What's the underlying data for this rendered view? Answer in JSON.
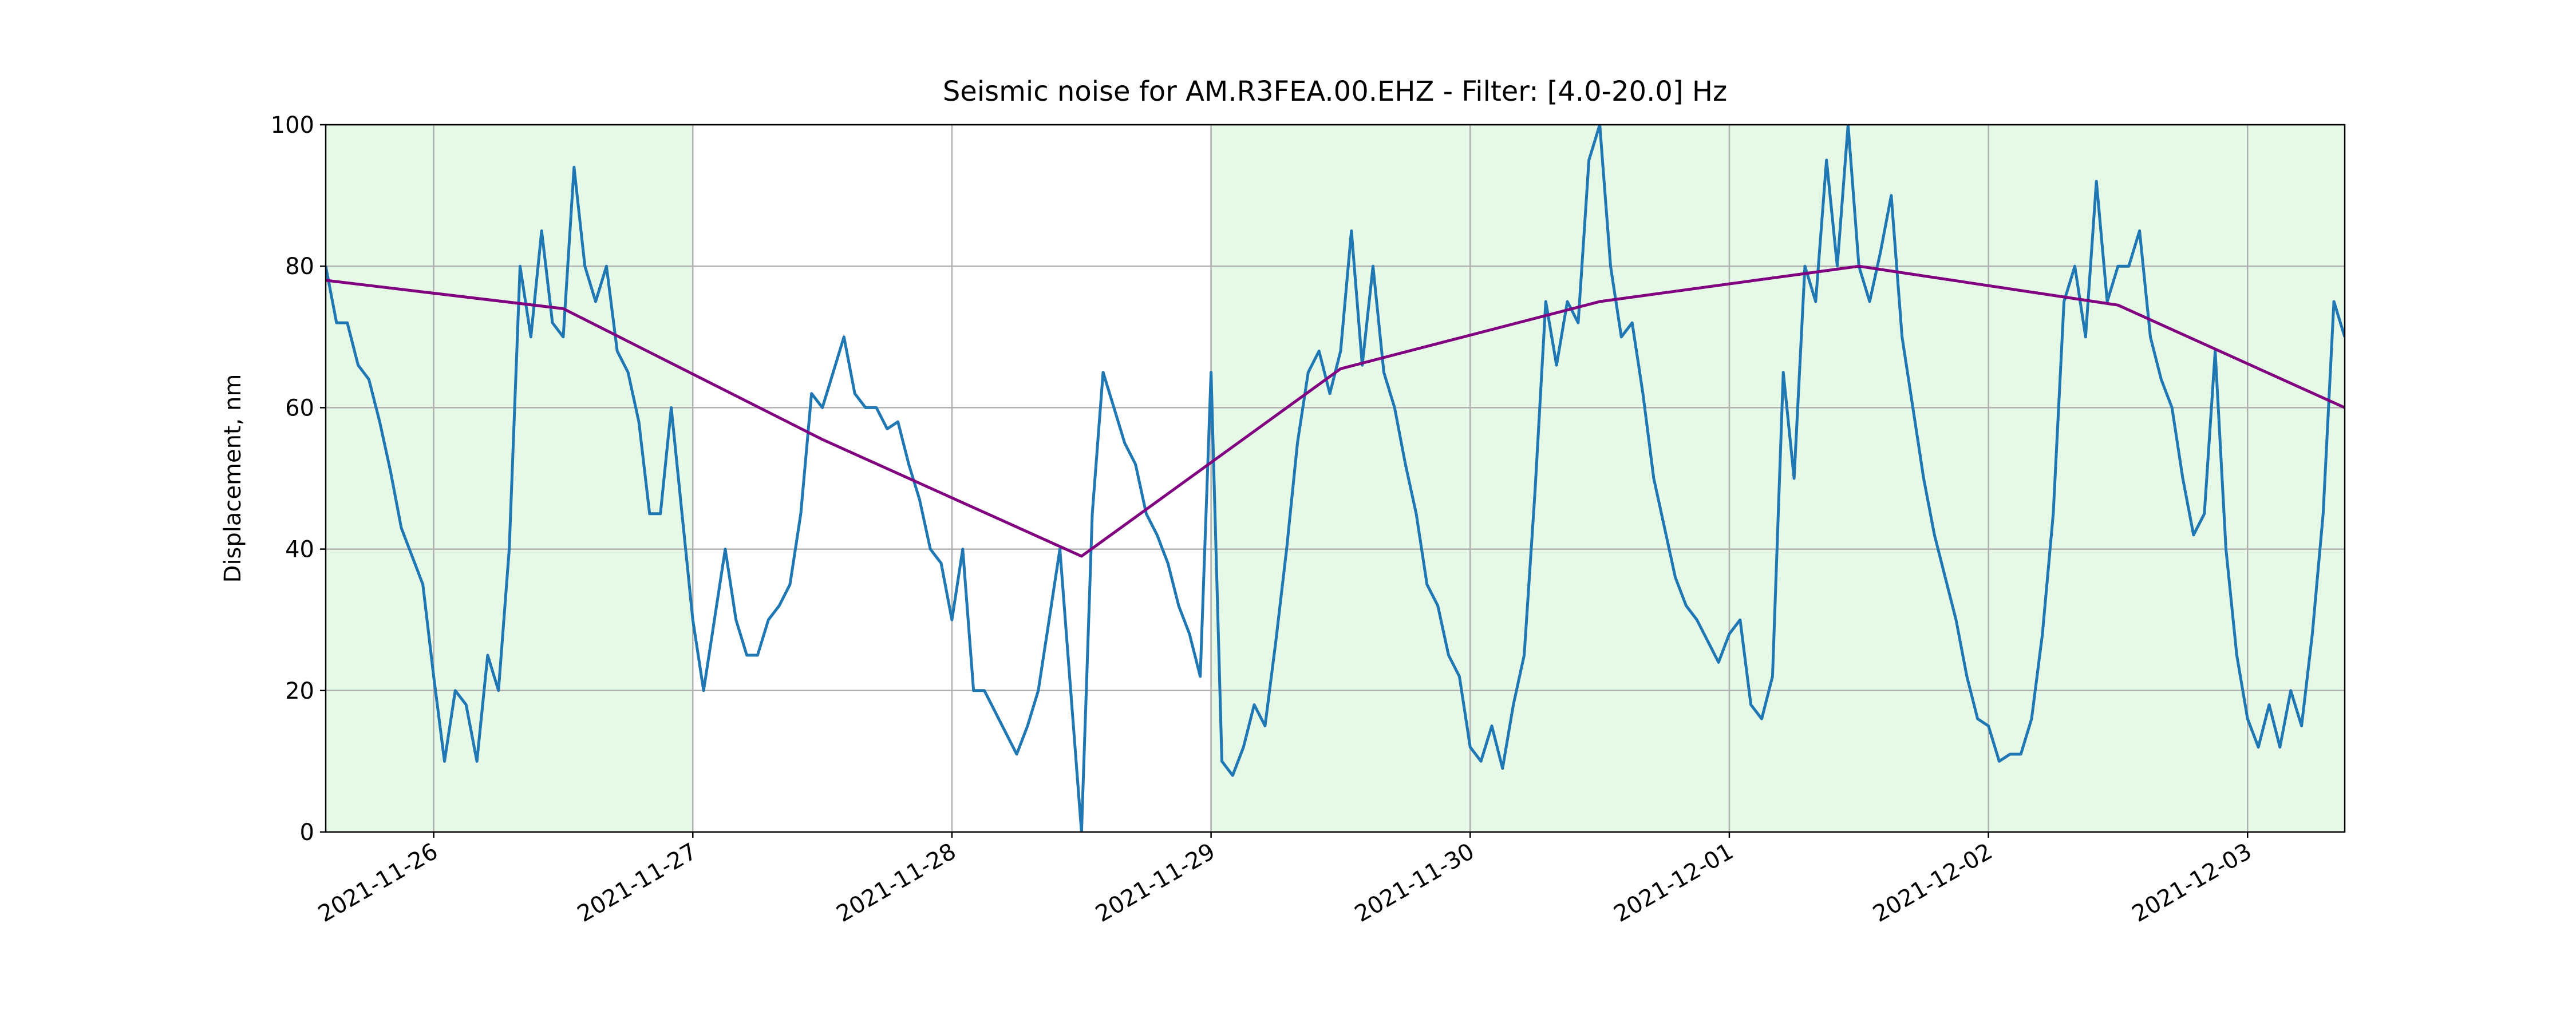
{
  "chart_data": {
    "type": "line",
    "title": "Seismic noise for AM.R3FEA.00.EHZ - Filter: [4.0-20.0] Hz",
    "ylabel": "Displacement, nm",
    "xlim": [
      "2021-11-25T14:00",
      "2021-12-03T09:00"
    ],
    "ylim": [
      0,
      100
    ],
    "yticks": [
      0,
      20,
      40,
      60,
      80,
      100
    ],
    "xticks": [
      {
        "value": "2021-11-26T00:00",
        "label": "2021-11-26"
      },
      {
        "value": "2021-11-27T00:00",
        "label": "2021-11-27"
      },
      {
        "value": "2021-11-28T00:00",
        "label": "2021-11-28"
      },
      {
        "value": "2021-11-29T00:00",
        "label": "2021-11-29"
      },
      {
        "value": "2021-11-30T00:00",
        "label": "2021-11-30"
      },
      {
        "value": "2021-12-01T00:00",
        "label": "2021-12-01"
      },
      {
        "value": "2021-12-02T00:00",
        "label": "2021-12-02"
      },
      {
        "value": "2021-12-03T00:00",
        "label": "2021-12-03"
      }
    ],
    "grid": true,
    "shade_color": "#e6f9e6",
    "shaded_spans": [
      {
        "start": "2021-11-25T14:00",
        "end": "2021-11-27T00:00"
      },
      {
        "start": "2021-11-29T00:00",
        "end": "2021-12-03T09:00"
      }
    ],
    "series": [
      {
        "color": "#1f77b4",
        "x": [
          "2021-11-25T14:00",
          "2021-11-25T15:00",
          "2021-11-25T16:00",
          "2021-11-25T17:00",
          "2021-11-25T18:00",
          "2021-11-25T19:00",
          "2021-11-25T20:00",
          "2021-11-25T21:00",
          "2021-11-25T22:00",
          "2021-11-25T23:00",
          "2021-11-26T00:00",
          "2021-11-26T01:00",
          "2021-11-26T02:00",
          "2021-11-26T03:00",
          "2021-11-26T04:00",
          "2021-11-26T05:00",
          "2021-11-26T06:00",
          "2021-11-26T07:00",
          "2021-11-26T08:00",
          "2021-11-26T09:00",
          "2021-11-26T10:00",
          "2021-11-26T11:00",
          "2021-11-26T12:00",
          "2021-11-26T13:00",
          "2021-11-26T14:00",
          "2021-11-26T15:00",
          "2021-11-26T16:00",
          "2021-11-26T17:00",
          "2021-11-26T18:00",
          "2021-11-26T19:00",
          "2021-11-26T20:00",
          "2021-11-26T21:00",
          "2021-11-26T22:00",
          "2021-11-26T23:00",
          "2021-11-27T00:00",
          "2021-11-27T01:00",
          "2021-11-27T02:00",
          "2021-11-27T03:00",
          "2021-11-27T04:00",
          "2021-11-27T05:00",
          "2021-11-27T06:00",
          "2021-11-27T07:00",
          "2021-11-27T08:00",
          "2021-11-27T09:00",
          "2021-11-27T10:00",
          "2021-11-27T11:00",
          "2021-11-27T12:00",
          "2021-11-27T13:00",
          "2021-11-27T14:00",
          "2021-11-27T15:00",
          "2021-11-27T16:00",
          "2021-11-27T17:00",
          "2021-11-27T18:00",
          "2021-11-27T19:00",
          "2021-11-27T20:00",
          "2021-11-27T21:00",
          "2021-11-27T22:00",
          "2021-11-27T23:00",
          "2021-11-28T00:00",
          "2021-11-28T01:00",
          "2021-11-28T02:00",
          "2021-11-28T03:00",
          "2021-11-28T04:00",
          "2021-11-28T05:00",
          "2021-11-28T06:00",
          "2021-11-28T07:00",
          "2021-11-28T08:00",
          "2021-11-28T09:00",
          "2021-11-28T10:00",
          "2021-11-28T11:00",
          "2021-11-28T12:00",
          "2021-11-28T13:00",
          "2021-11-28T14:00",
          "2021-11-28T15:00",
          "2021-11-28T16:00",
          "2021-11-28T17:00",
          "2021-11-28T18:00",
          "2021-11-28T19:00",
          "2021-11-28T20:00",
          "2021-11-28T21:00",
          "2021-11-28T22:00",
          "2021-11-28T23:00",
          "2021-11-29T00:00",
          "2021-11-29T01:00",
          "2021-11-29T02:00",
          "2021-11-29T03:00",
          "2021-11-29T04:00",
          "2021-11-29T05:00",
          "2021-11-29T06:00",
          "2021-11-29T07:00",
          "2021-11-29T08:00",
          "2021-11-29T09:00",
          "2021-11-29T10:00",
          "2021-11-29T11:00",
          "2021-11-29T12:00",
          "2021-11-29T13:00",
          "2021-11-29T14:00",
          "2021-11-29T15:00",
          "2021-11-29T16:00",
          "2021-11-29T17:00",
          "2021-11-29T18:00",
          "2021-11-29T19:00",
          "2021-11-29T20:00",
          "2021-11-29T21:00",
          "2021-11-29T22:00",
          "2021-11-29T23:00",
          "2021-11-30T00:00",
          "2021-11-30T01:00",
          "2021-11-30T02:00",
          "2021-11-30T03:00",
          "2021-11-30T04:00",
          "2021-11-30T05:00",
          "2021-11-30T06:00",
          "2021-11-30T07:00",
          "2021-11-30T08:00",
          "2021-11-30T09:00",
          "2021-11-30T10:00",
          "2021-11-30T11:00",
          "2021-11-30T12:00",
          "2021-11-30T13:00",
          "2021-11-30T14:00",
          "2021-11-30T15:00",
          "2021-11-30T16:00",
          "2021-11-30T17:00",
          "2021-11-30T18:00",
          "2021-11-30T19:00",
          "2021-11-30T20:00",
          "2021-11-30T21:00",
          "2021-11-30T22:00",
          "2021-11-30T23:00",
          "2021-12-01T00:00",
          "2021-12-01T01:00",
          "2021-12-01T02:00",
          "2021-12-01T03:00",
          "2021-12-01T04:00",
          "2021-12-01T05:00",
          "2021-12-01T06:00",
          "2021-12-01T07:00",
          "2021-12-01T08:00",
          "2021-12-01T09:00",
          "2021-12-01T10:00",
          "2021-12-01T11:00",
          "2021-12-01T12:00",
          "2021-12-01T13:00",
          "2021-12-01T14:00",
          "2021-12-01T15:00",
          "2021-12-01T16:00",
          "2021-12-01T17:00",
          "2021-12-01T18:00",
          "2021-12-01T19:00",
          "2021-12-01T20:00",
          "2021-12-01T21:00",
          "2021-12-01T22:00",
          "2021-12-01T23:00",
          "2021-12-02T00:00",
          "2021-12-02T01:00",
          "2021-12-02T02:00",
          "2021-12-02T03:00",
          "2021-12-02T04:00",
          "2021-12-02T05:00",
          "2021-12-02T06:00",
          "2021-12-02T07:00",
          "2021-12-02T08:00",
          "2021-12-02T09:00",
          "2021-12-02T10:00",
          "2021-12-02T11:00",
          "2021-12-02T12:00",
          "2021-12-02T13:00",
          "2021-12-02T14:00",
          "2021-12-02T15:00",
          "2021-12-02T16:00",
          "2021-12-02T17:00",
          "2021-12-02T18:00",
          "2021-12-02T19:00",
          "2021-12-02T20:00",
          "2021-12-02T21:00",
          "2021-12-02T22:00",
          "2021-12-02T23:00",
          "2021-12-03T00:00",
          "2021-12-03T01:00",
          "2021-12-03T02:00",
          "2021-12-03T03:00",
          "2021-12-03T04:00",
          "2021-12-03T05:00",
          "2021-12-03T06:00",
          "2021-12-03T07:00",
          "2021-12-03T08:00",
          "2021-12-03T09:00"
        ],
        "values": [
          80,
          72,
          72,
          66,
          64,
          58,
          51,
          43,
          39,
          35,
          22,
          10,
          20,
          18,
          10,
          25,
          20,
          40,
          80,
          70,
          85,
          72,
          70,
          94,
          80,
          75,
          80,
          68,
          65,
          58,
          45,
          45,
          60,
          45,
          30,
          20,
          30,
          40,
          30,
          25,
          25,
          30,
          32,
          35,
          45,
          62,
          60,
          65,
          70,
          62,
          60,
          60,
          57,
          58,
          52,
          47,
          40,
          38,
          30,
          40,
          20,
          20,
          17,
          14,
          11,
          15,
          20,
          30,
          40,
          20,
          0,
          45,
          65,
          60,
          55,
          52,
          45,
          42,
          38,
          32,
          28,
          22,
          65,
          10,
          8,
          12,
          18,
          15,
          27,
          40,
          55,
          65,
          68,
          62,
          68,
          85,
          66,
          80,
          65,
          60,
          52,
          45,
          35,
          32,
          25,
          22,
          12,
          10,
          15,
          9,
          18,
          25,
          48,
          75,
          66,
          75,
          72,
          95,
          100,
          80,
          70,
          72,
          62,
          50,
          43,
          36,
          32,
          30,
          27,
          24,
          28,
          30,
          18,
          16,
          22,
          65,
          50,
          80,
          75,
          95,
          80,
          100,
          80,
          75,
          82,
          90,
          70,
          60,
          50,
          42,
          36,
          30,
          22,
          16,
          15,
          10,
          11,
          11,
          16,
          28,
          45,
          75,
          80,
          70,
          92,
          75,
          80,
          80,
          85,
          70,
          64,
          60,
          50,
          42,
          45,
          68,
          40,
          25,
          16,
          12,
          18,
          12,
          20,
          15,
          28,
          45,
          75,
          70
        ]
      },
      {
        "color": "purple",
        "x": [
          "2021-11-25T14:00",
          "2021-11-26T12:00",
          "2021-11-27T12:00",
          "2021-11-28T12:00",
          "2021-11-29T12:00",
          "2021-11-30T12:00",
          "2021-12-01T12:00",
          "2021-12-02T12:00",
          "2021-12-03T09:00"
        ],
        "values": [
          78,
          74,
          55.5,
          39,
          65.5,
          75,
          80,
          74.5,
          60
        ]
      }
    ]
  }
}
